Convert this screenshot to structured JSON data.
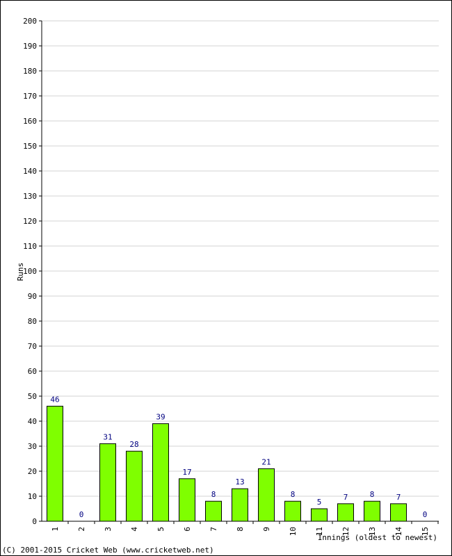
{
  "chart_data": {
    "type": "bar",
    "categories": [
      "1",
      "2",
      "3",
      "4",
      "5",
      "6",
      "7",
      "8",
      "9",
      "10",
      "11",
      "12",
      "13",
      "14",
      "15"
    ],
    "values": [
      46,
      0,
      31,
      28,
      39,
      17,
      8,
      13,
      21,
      8,
      5,
      7,
      8,
      7,
      0
    ],
    "data_labels": [
      "46",
      "0",
      "31",
      "28",
      "39",
      "17",
      "8",
      "13",
      "21",
      "8",
      "5",
      "7",
      "8",
      "7",
      "0"
    ],
    "xlabel": "Innings (oldest to newest)",
    "ylabel": "Runs",
    "ylim": [
      0,
      200
    ],
    "ytick_step": 10,
    "grid": true,
    "colors": {
      "bar_fill": "#7fff00",
      "bar_stroke": "#000000",
      "data_label": "#000080",
      "grid": "#d3d3d3"
    }
  },
  "footer": {
    "copyright": "(C) 2001-2015 Cricket Web (www.cricketweb.net)"
  }
}
